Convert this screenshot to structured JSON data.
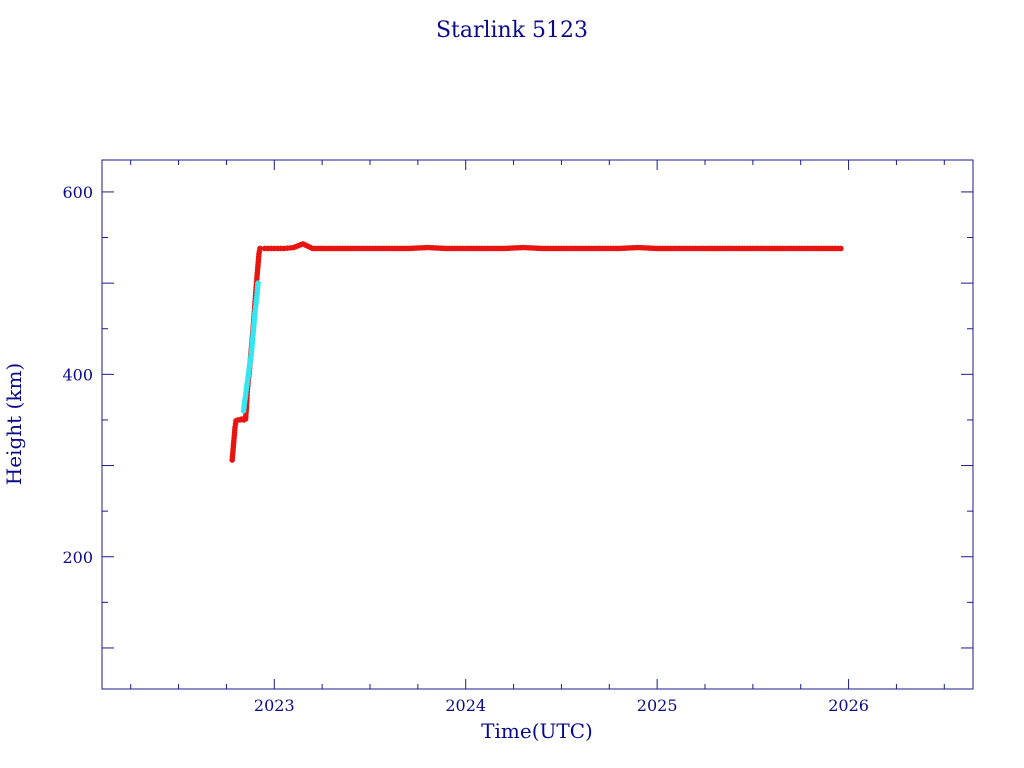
{
  "chart_data": {
    "type": "scatter",
    "title": "Starlink 5123",
    "xlabel": "Time(UTC)",
    "ylabel": "Height (km)",
    "xlim": [
      2022.1,
      2026.65
    ],
    "ylim": [
      55,
      635
    ],
    "x_ticks": [
      {
        "value": 2023,
        "label": "2023"
      },
      {
        "value": 2024,
        "label": "2024"
      },
      {
        "value": 2025,
        "label": "2025"
      },
      {
        "value": 2026,
        "label": "2026"
      }
    ],
    "x_minor_step": 0.25,
    "y_ticks": [
      {
        "value": 200,
        "label": "200"
      },
      {
        "value": 400,
        "label": "400"
      },
      {
        "value": 600,
        "label": "600"
      }
    ],
    "y_minor_step": 50,
    "grid": false,
    "colors": {
      "text": "#0a0a8a",
      "frame": "#1a1a8c",
      "red_series": "#e8140f",
      "cyan_series": "#33e6f0"
    },
    "series": [
      {
        "color": "red",
        "points": [
          [
            2022.78,
            306
          ],
          [
            2022.785,
            318
          ],
          [
            2022.79,
            330
          ],
          [
            2022.795,
            342
          ],
          [
            2022.8,
            349
          ],
          [
            2022.81,
            350
          ],
          [
            2022.82,
            350
          ],
          [
            2022.83,
            351
          ],
          [
            2022.84,
            350
          ],
          [
            2022.85,
            351
          ],
          [
            2022.855,
            365
          ],
          [
            2022.86,
            384
          ],
          [
            2022.865,
            395
          ],
          [
            2022.87,
            404
          ],
          [
            2022.875,
            416
          ],
          [
            2022.88,
            428
          ],
          [
            2022.885,
            440
          ],
          [
            2022.89,
            452
          ],
          [
            2022.895,
            466
          ],
          [
            2022.9,
            480
          ],
          [
            2022.905,
            495
          ],
          [
            2022.91,
            508
          ],
          [
            2022.915,
            520
          ],
          [
            2022.92,
            532
          ],
          [
            2022.925,
            538
          ],
          [
            2022.95,
            538
          ],
          [
            2023.0,
            538
          ],
          [
            2023.05,
            538
          ],
          [
            2023.1,
            539
          ],
          [
            2023.15,
            543
          ],
          [
            2023.2,
            538
          ],
          [
            2023.3,
            538
          ],
          [
            2023.4,
            538
          ],
          [
            2023.5,
            538
          ],
          [
            2023.6,
            538
          ],
          [
            2023.7,
            538
          ],
          [
            2023.8,
            539
          ],
          [
            2023.9,
            538
          ],
          [
            2024.0,
            538
          ],
          [
            2024.1,
            538
          ],
          [
            2024.2,
            538
          ],
          [
            2024.3,
            539
          ],
          [
            2024.4,
            538
          ],
          [
            2024.5,
            538
          ],
          [
            2024.6,
            538
          ],
          [
            2024.7,
            538
          ],
          [
            2024.8,
            538
          ],
          [
            2024.9,
            539
          ],
          [
            2025.0,
            538
          ],
          [
            2025.1,
            538
          ],
          [
            2025.2,
            538
          ],
          [
            2025.3,
            538
          ],
          [
            2025.4,
            538
          ],
          [
            2025.5,
            538
          ],
          [
            2025.6,
            538
          ],
          [
            2025.7,
            538
          ],
          [
            2025.8,
            538
          ],
          [
            2025.9,
            538
          ],
          [
            2025.96,
            538
          ]
        ]
      },
      {
        "color": "cyan",
        "points": [
          [
            2022.84,
            360
          ],
          [
            2022.845,
            370
          ],
          [
            2022.85,
            376
          ],
          [
            2022.855,
            386
          ],
          [
            2022.86,
            392
          ],
          [
            2022.87,
            408
          ],
          [
            2022.88,
            422
          ],
          [
            2022.89,
            446
          ],
          [
            2022.9,
            470
          ],
          [
            2022.905,
            478
          ],
          [
            2022.91,
            488
          ],
          [
            2022.915,
            500
          ]
        ]
      }
    ]
  }
}
